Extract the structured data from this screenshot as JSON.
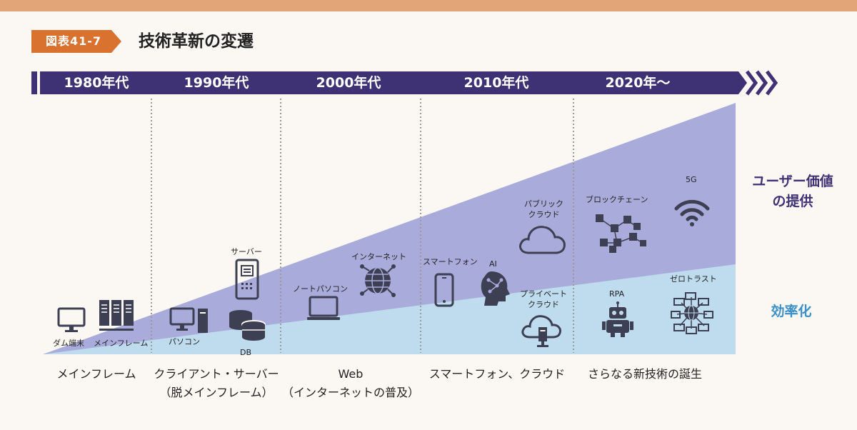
{
  "figure": {
    "tag": "図表41-7",
    "title": "技術革新の変遷"
  },
  "timeline": {
    "eras": [
      "1980年代",
      "1990年代",
      "2000年代",
      "2010年代",
      "2020年〜"
    ]
  },
  "side_labels": {
    "user_value": [
      "ユーザー価値",
      "の提供"
    ],
    "efficiency": "効率化"
  },
  "icons": {
    "dumb_terminal": "ダム端末",
    "mainframe": "メインフレーム",
    "pc": "パソコン",
    "server": "サーバー",
    "db": "DB",
    "notebook": "ノートパソコン",
    "internet": "インターネット",
    "smartphone": "スマートフォン",
    "ai": "AI",
    "public_cloud": [
      "パブリック",
      "クラウド"
    ],
    "private_cloud": [
      "プライベート",
      "クラウド"
    ],
    "blockchain": "ブロックチェーン",
    "five_g": "5G",
    "rpa": "RPA",
    "zero_trust": "ゼロトラスト"
  },
  "bottom_labels": [
    [
      "メインフレーム"
    ],
    [
      "クライアント・サーバー",
      "（脱メインフレーム）"
    ],
    [
      "Web",
      "（インターネットの普及）"
    ],
    [
      "スマートフォン、クラウド"
    ],
    [
      "さらなる新技術の誕生"
    ]
  ],
  "colors": {
    "top_rule": "#e2a577",
    "tag": "#d9712f",
    "timeline": "#3e3275",
    "user_value_area": "#a9acdb",
    "efficiency_area": "#bfdcef",
    "efficiency_text": "#3a8fc8",
    "icon": "#3d3f52"
  }
}
